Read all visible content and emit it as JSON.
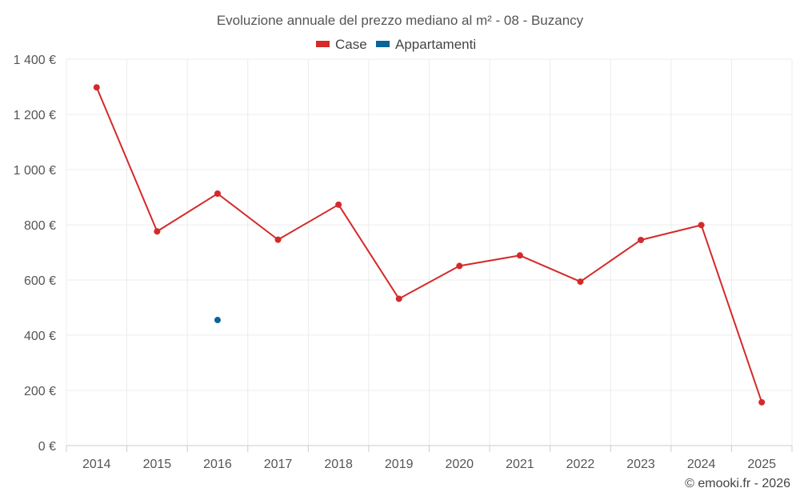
{
  "chart_data": {
    "type": "line",
    "title": "Evoluzione annuale del prezzo mediano al m² - 08 - Buzancy",
    "categories": [
      "2014",
      "2015",
      "2016",
      "2017",
      "2018",
      "2019",
      "2020",
      "2021",
      "2022",
      "2023",
      "2024",
      "2025"
    ],
    "series": [
      {
        "name": "Case",
        "color": "#d42a2a",
        "values": [
          1298,
          776,
          913,
          746,
          873,
          532,
          651,
          689,
          594,
          745,
          799,
          157
        ]
      },
      {
        "name": "Appartamenti",
        "color": "#08649b",
        "values": [
          null,
          null,
          455,
          null,
          null,
          null,
          null,
          null,
          null,
          null,
          null,
          null
        ]
      }
    ],
    "ylim": [
      0,
      1400
    ],
    "yticks": [
      0,
      200,
      400,
      600,
      800,
      1000,
      1200,
      1400
    ],
    "ytick_labels": [
      "0 €",
      "200 €",
      "400 €",
      "600 €",
      "800 €",
      "1 000 €",
      "1 200 €",
      "1 400 €"
    ],
    "xlabel": "",
    "ylabel": "",
    "grid": true,
    "legend_position": "top-center"
  },
  "credit": "© emooki.fr - 2026"
}
